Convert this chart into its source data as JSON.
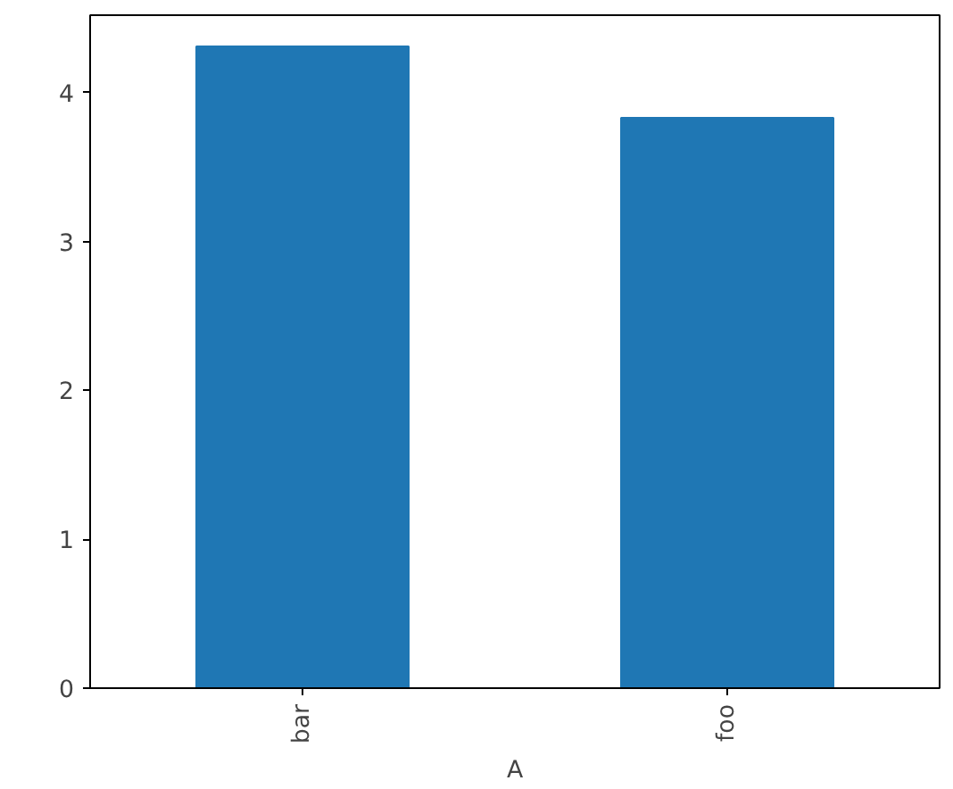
{
  "chart_data": {
    "type": "bar",
    "xlabel": "A",
    "categories": [
      "bar",
      "foo"
    ],
    "series": [
      {
        "color": "#1f77b4",
        "values": [
          4.31,
          3.83
        ]
      }
    ],
    "ylim": [
      0,
      4.52
    ],
    "yticks": [
      0,
      1,
      2,
      3,
      4
    ],
    "grid": false
  }
}
